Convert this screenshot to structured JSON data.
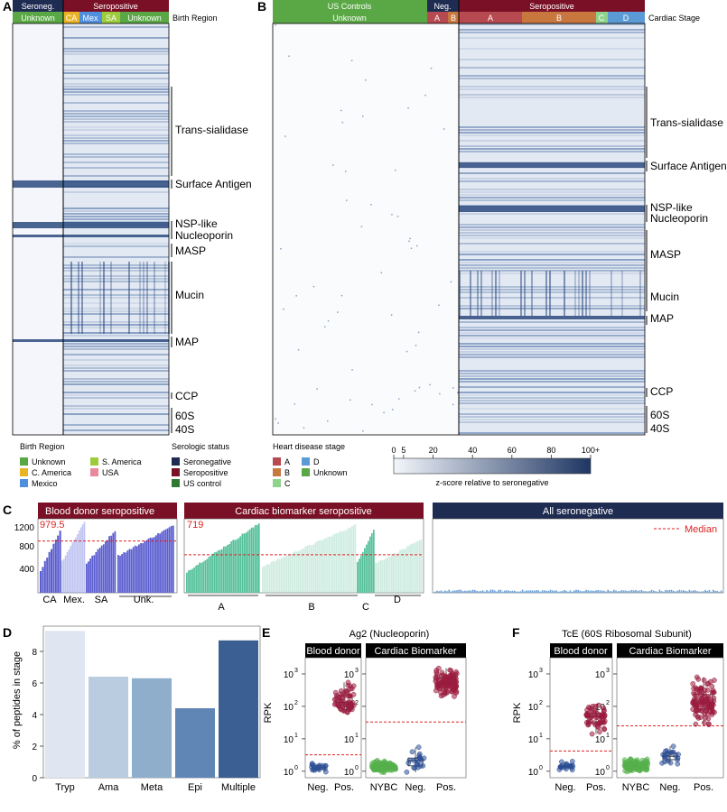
{
  "panels": {
    "A": "A",
    "B": "B",
    "C": "C",
    "D": "D",
    "E": "E",
    "F": "F"
  },
  "panelA": {
    "group_labels": [
      "Seroneg.",
      "Seropositive"
    ],
    "sub_labels": [
      "Unknown",
      "CA",
      "Mex",
      "SA",
      "Unknown"
    ],
    "track_label": "Birth Region",
    "protein_labels": [
      "Trans-sialidase",
      "Surface Antigen",
      "NSP-like",
      "Nucleoporin",
      "MASP",
      "Mucin",
      "MAP",
      "CCP",
      "60S",
      "40S"
    ]
  },
  "panelB": {
    "group_labels": [
      "US Controls",
      "Neg.",
      "Seropositive"
    ],
    "sub_labels": [
      "Unknown",
      "A",
      "B",
      "A",
      "B",
      "C",
      "D"
    ],
    "track_label": "Cardiac Stage",
    "protein_labels": [
      "Trans-sialidase",
      "Surface Antigen",
      "NSP-like",
      "Nucleoporin",
      "MASP",
      "Mucin",
      "MAP",
      "CCP",
      "60S",
      "40S"
    ]
  },
  "legend_birth": {
    "title": "Birth Region",
    "items": [
      {
        "label": "Unknown",
        "color": "#5aa845"
      },
      {
        "label": "C. America",
        "color": "#e8b324"
      },
      {
        "label": "Mexico",
        "color": "#4f8fe0"
      },
      {
        "label": "S. America",
        "color": "#9ccc3c"
      },
      {
        "label": "USA",
        "color": "#e8899c"
      }
    ]
  },
  "legend_sero": {
    "title": "Serologic status",
    "items": [
      {
        "label": "Seronegative",
        "color": "#1f2c52"
      },
      {
        "label": "Seropositive",
        "color": "#7a1026"
      },
      {
        "label": "US control",
        "color": "#2e7a32"
      }
    ]
  },
  "legend_heart": {
    "title": "Heart disease stage",
    "items": [
      {
        "label": "A",
        "color": "#b64a50"
      },
      {
        "label": "B",
        "color": "#c8773f"
      },
      {
        "label": "C",
        "color": "#8ed38a"
      },
      {
        "label": "D",
        "color": "#5b9bd5"
      },
      {
        "label": "Unknown",
        "color": "#5aa845"
      }
    ]
  },
  "colorbar": {
    "ticks": [
      "0",
      "5",
      "20",
      "40",
      "60",
      "80",
      "100+"
    ],
    "tick_values": [
      0,
      5,
      20,
      40,
      60,
      80,
      100
    ],
    "label": "z-score relative to seronegative"
  },
  "panelC": {
    "titles": [
      "Blood donor seropositive",
      "Cardiac biomarker seropositive",
      "All seronegative"
    ],
    "median1": "979.5",
    "median2": "719",
    "median_legend": "Median",
    "yticks": [
      "400",
      "800",
      "1200"
    ],
    "groups1": [
      "CA",
      "Mex.",
      "SA",
      "Unk."
    ],
    "groups2": [
      "A",
      "B",
      "C",
      "D"
    ]
  },
  "chart_data": [
    {
      "type": "bar",
      "title": "% of peptides in stage",
      "categories": [
        "Tryp",
        "Ama",
        "Meta",
        "Epi",
        "Multiple"
      ],
      "values": [
        9.3,
        6.4,
        6.3,
        4.4,
        8.7
      ],
      "colors": [
        "#dfe5f1",
        "#bacde0",
        "#8eaecc",
        "#6086b6",
        "#3b5f92"
      ],
      "ylabel": "% of peptides in stage",
      "ylim": [
        0,
        9.6
      ],
      "yticks": [
        "0",
        "2",
        "4",
        "6",
        "8"
      ]
    },
    {
      "type": "scatter",
      "title": "Ag2 (Nucleoporin)",
      "ylabel": "RPK",
      "facets": [
        {
          "title": "Blood donor",
          "groups": [
            "Neg.",
            "Pos."
          ],
          "medians": [
            1.3,
            160
          ],
          "threshold": 3.2
        },
        {
          "title": "Cardiac Biomarker",
          "groups": [
            "NYBC",
            "Neg.",
            "Pos."
          ],
          "medians": [
            1.4,
            2.2,
            500
          ],
          "threshold": 33
        }
      ]
    },
    {
      "type": "scatter",
      "title": "TcE (60S Ribosomal Subunit)",
      "ylabel": "RPK",
      "facets": [
        {
          "title": "Blood donor",
          "groups": [
            "Neg.",
            "Pos."
          ],
          "medians": [
            1.4,
            45
          ],
          "threshold": 4.2
        },
        {
          "title": "Cardiac Biomarker",
          "groups": [
            "NYBC",
            "Neg.",
            "Pos."
          ],
          "medians": [
            1.5,
            2.8,
            150
          ],
          "threshold": 25
        }
      ]
    }
  ],
  "log_ticks": [
    "10",
    "10",
    "10",
    "10"
  ],
  "log_exps": [
    "0",
    "1",
    "2",
    "3"
  ]
}
